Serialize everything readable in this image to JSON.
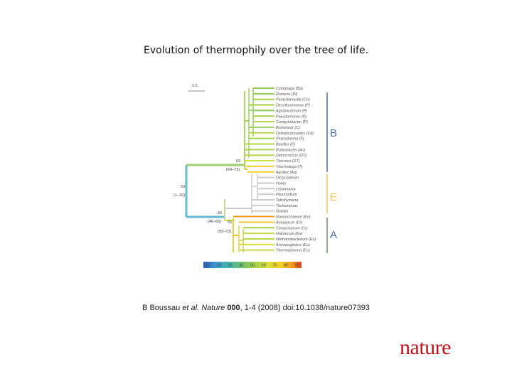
{
  "title": "Evolution of thermophily over the tree of life.",
  "figure": {
    "scale_bar_label": "0.5",
    "node_labels": [
      {
        "id": "root_support",
        "text": "50"
      },
      {
        "id": "root_range",
        "text": "(1–30)"
      },
      {
        "id": "bact_support",
        "text": "69"
      },
      {
        "id": "bact_range",
        "text": "(64–73)"
      },
      {
        "id": "arch_support",
        "text": "55"
      },
      {
        "id": "arch_range",
        "text": "(46–65)"
      },
      {
        "id": "cren_support",
        "text": "66"
      },
      {
        "id": "cren_range",
        "text": "(59–73)"
      }
    ],
    "taxa": [
      {
        "name": "Cytophaga (Ba)"
      },
      {
        "name": "Rumeria (Pl)"
      },
      {
        "name": "Parachlamydia (Ch)"
      },
      {
        "name": "Desulfuromonas (P)"
      },
      {
        "name": "Agrobacterium (P)"
      },
      {
        "name": "Pseudomonas (P)"
      },
      {
        "name": "Campylobacter (P)"
      },
      {
        "name": "Borrelia/ar (C)"
      },
      {
        "name": "Dehalococcoides (Cd)"
      },
      {
        "name": "Phytoplasma (F)"
      },
      {
        "name": "Bacillus (F)"
      },
      {
        "name": "Rubrobacter (Ac)"
      },
      {
        "name": "Deinococcus (DT)"
      },
      {
        "name": "Thermus (DT)"
      },
      {
        "name": "Thermotoga (T)"
      },
      {
        "name": "Aquifex (Aq)"
      },
      {
        "name": "Dictyostelium"
      },
      {
        "name": "Homo"
      },
      {
        "name": "Leishmania"
      },
      {
        "name": "Plasmodium"
      },
      {
        "name": "Tetrahymena"
      },
      {
        "name": "Trichomonas"
      },
      {
        "name": "Giardia"
      },
      {
        "name": "Nanoarchaeum (Eu)"
      },
      {
        "name": "Aeropyrum (Cr)"
      },
      {
        "name": "Cenarchaeum (Cr)"
      },
      {
        "name": "Haloarcula (Eu)"
      },
      {
        "name": "Methanobacterium (Eu)"
      },
      {
        "name": "Archaeoglobus (Eu)"
      },
      {
        "name": "Thermoplasma (Eu)"
      }
    ],
    "domains": [
      {
        "label": "B",
        "color": "#4b6da9"
      },
      {
        "label": "E",
        "color": "#f2c44c"
      },
      {
        "label": "A",
        "color": "#5a9e5a"
      }
    ],
    "colorbar_ticks": [
      "10",
      "20",
      "30",
      "40",
      "50",
      "60",
      "70",
      "80",
      "90"
    ],
    "colorbar_colors": [
      "#2f5fb8",
      "#3a9bd2",
      "#46b6a8",
      "#71c267",
      "#a6d14a",
      "#d8de3c",
      "#f6d023",
      "#f29c1c",
      "#e2431b"
    ]
  },
  "citation": {
    "authors": "B Boussau ",
    "etal": "et al.",
    "journal": " Nature ",
    "volume": "000",
    "rest": ", 1-4 (2008) doi:10.1038/nature07393"
  },
  "logo": "nature"
}
